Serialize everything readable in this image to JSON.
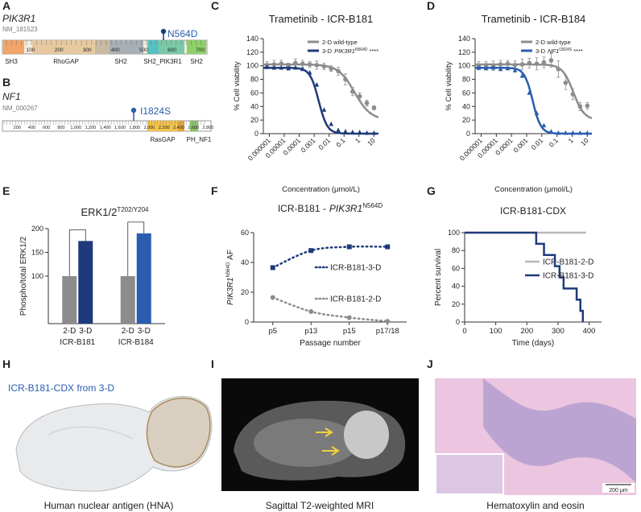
{
  "panel_labels": [
    "A",
    "B",
    "C",
    "D",
    "E",
    "F",
    "G",
    "H",
    "I",
    "J"
  ],
  "panels": {
    "A": {
      "gene": "PIK3R1",
      "transcript": "NM_181523",
      "mutation": "N564D",
      "ruler": [
        100,
        200,
        300,
        400,
        500,
        600,
        700
      ],
      "domains": [
        "SH3",
        "RhoGAP",
        "SH2",
        "SH2_PIK3R1",
        "SH2"
      ]
    },
    "B": {
      "gene": "NF1",
      "transcript": "NM_000267",
      "mutation": "I1824S",
      "ruler": [
        "200",
        "400",
        "600",
        "800",
        "1,000",
        "1,200",
        "1,400",
        "1,600",
        "1,800",
        "2,000",
        "2,200",
        "2,400",
        "2,600",
        "2,800"
      ],
      "domains": [
        "RasGAP",
        "PH_NF1"
      ]
    },
    "H": {
      "title": "ICR-B181-CDX from 3-D",
      "caption": "Human nuclear antigen (HNA)"
    },
    "I": {
      "caption": "Sagittal T2-weighted MRI"
    },
    "J": {
      "caption": "Hematoxylin and eosin",
      "scale_bar": "200 μm"
    }
  },
  "chart_data": [
    {
      "type": "dose_response",
      "title": "Trametinib - ICR-B181",
      "x_label": "Concentration (μmol/L)",
      "y_label": "% Cell viability",
      "xscale": "log",
      "xlim": [
        4e-07,
        20
      ],
      "xticks": [
        1e-06,
        1e-05,
        0.0001,
        0.001,
        0.01,
        0.1,
        1,
        10
      ],
      "ylim": [
        0,
        140
      ],
      "yticks": [
        0,
        20,
        40,
        60,
        80,
        100,
        120,
        140
      ],
      "x": [
        7e-07,
        2.1e-06,
        6.3e-06,
        1.9e-05,
        5.6e-05,
        0.00017,
        0.00051,
        0.0015,
        0.0046,
        0.0137,
        0.041,
        0.123,
        0.37,
        1.11,
        3.33,
        10
      ],
      "series": [
        {
          "name": "2-D wild-type",
          "color": "#8c8c8c",
          "marker": "circle",
          "values": [
            101,
            102,
            103,
            100,
            104,
            103,
            102,
            101,
            99,
            96,
            92,
            80,
            62,
            55,
            45,
            38
          ],
          "errors": [
            5,
            6,
            5,
            4,
            6,
            5,
            4,
            6,
            5,
            4,
            6,
            8,
            6,
            5,
            4,
            3
          ],
          "fit": {
            "top": 102,
            "bottom": 20,
            "ec50": 0.5,
            "hill": 0.8
          }
        },
        {
          "name": "3-D",
          "gene": "PIK3R1",
          "mutation": "N564D",
          "significance": "****",
          "color": "#1f3a7a",
          "marker": "triangle",
          "values": [
            98,
            97,
            97,
            96,
            97,
            95,
            90,
            72,
            35,
            14,
            5,
            3,
            2,
            2,
            1,
            1
          ],
          "fit": {
            "top": 97,
            "bottom": 0,
            "ec50": 0.002,
            "hill": 1.5
          }
        }
      ]
    },
    {
      "type": "dose_response",
      "title": "Trametinib - ICR-B184",
      "x_label": "Concentration (μmol/L)",
      "y_label": "% Cell viability",
      "xscale": "log",
      "xlim": [
        4e-07,
        20
      ],
      "xticks": [
        1e-06,
        1e-05,
        0.0001,
        0.001,
        0.01,
        0.1,
        1,
        10
      ],
      "ylim": [
        0,
        140
      ],
      "yticks": [
        0,
        20,
        40,
        60,
        80,
        100,
        120,
        140
      ],
      "x": [
        7e-07,
        2.1e-06,
        6.3e-06,
        1.9e-05,
        5.6e-05,
        0.00017,
        0.00051,
        0.0015,
        0.0046,
        0.0137,
        0.041,
        0.123,
        0.37,
        1.11,
        3.33,
        10
      ],
      "series": [
        {
          "name": "2-D wild-type",
          "color": "#8c8c8c",
          "marker": "circle",
          "values": [
            100,
            101,
            100,
            102,
            103,
            101,
            102,
            104,
            103,
            105,
            108,
            95,
            75,
            58,
            40,
            41
          ],
          "errors": [
            6,
            5,
            7,
            6,
            5,
            6,
            8,
            7,
            9,
            8,
            10,
            12,
            10,
            8,
            6,
            5
          ],
          "fit": {
            "top": 102,
            "bottom": 20,
            "ec50": 1.2,
            "hill": 1.2
          }
        },
        {
          "name": "3-D",
          "gene": "NF1",
          "mutation": "I1824S",
          "significance": "****",
          "color": "#2a5db0",
          "marker": "triangle",
          "values": [
            97,
            96,
            97,
            95,
            96,
            93,
            85,
            60,
            30,
            12,
            3,
            1,
            1,
            1,
            1,
            1
          ],
          "fit": {
            "top": 97,
            "bottom": 0,
            "ec50": 0.0025,
            "hill": 1.6
          }
        }
      ]
    },
    {
      "type": "grouped_bar",
      "title": "ERK1/2",
      "title_superscript": "T202/Y204",
      "y_label": "Phospho/total ERK1/2",
      "ylim": [
        0,
        200
      ],
      "yticks": [
        100,
        150,
        200
      ],
      "categories": [
        "2-D",
        "3-D"
      ],
      "groups": [
        {
          "name": "ICR-B181",
          "values": [
            100,
            174
          ],
          "colors": [
            "#8c8c8c",
            "#1f3a7a"
          ]
        },
        {
          "name": "ICR-B184",
          "values": [
            100,
            190
          ],
          "colors": [
            "#8c8c8c",
            "#2a5db0"
          ]
        }
      ]
    },
    {
      "type": "line",
      "title": "ICR-B181 -",
      "title_gene": "PIK3R1",
      "title_superscript": "N564D",
      "y_label_gene": "PIK3R1",
      "y_label_superscript": "N564D",
      "y_label": "AF",
      "x_label": "Passage number",
      "ylim": [
        0,
        60
      ],
      "yticks": [
        0,
        20,
        40,
        60
      ],
      "categories": [
        "p5",
        "p13",
        "p15",
        "p17/18"
      ],
      "series": [
        {
          "name": "ICR-B181-3-D",
          "color": "#1f3a7a",
          "marker": "square",
          "values": [
            36.5,
            48,
            50.5,
            50.5
          ]
        },
        {
          "name": "ICR-B181-2-D",
          "color": "#8c8c8c",
          "marker": "circle",
          "values": [
            16.5,
            7,
            3,
            0.5
          ]
        }
      ]
    },
    {
      "type": "survival",
      "title": "ICR-B181-CDX",
      "x_label": "Time (days)",
      "y_label": "Percent survival",
      "xlim": [
        0,
        440
      ],
      "xticks": [
        0,
        100,
        200,
        300,
        400
      ],
      "ylim": [
        0,
        100
      ],
      "yticks": [
        0,
        20,
        40,
        60,
        80,
        100
      ],
      "series": [
        {
          "name": "ICR-B181-2-D",
          "color": "#b8b8b8",
          "x": [
            0,
            390
          ],
          "values": [
            100,
            100
          ]
        },
        {
          "name": "ICR-B181-3-D",
          "color": "#1f3a7a",
          "x": [
            0,
            230,
            255,
            290,
            305,
            318,
            360,
            372,
            380
          ],
          "values": [
            100,
            87.5,
            75,
            62.5,
            50,
            37.5,
            25,
            12.5,
            0
          ]
        }
      ]
    }
  ]
}
